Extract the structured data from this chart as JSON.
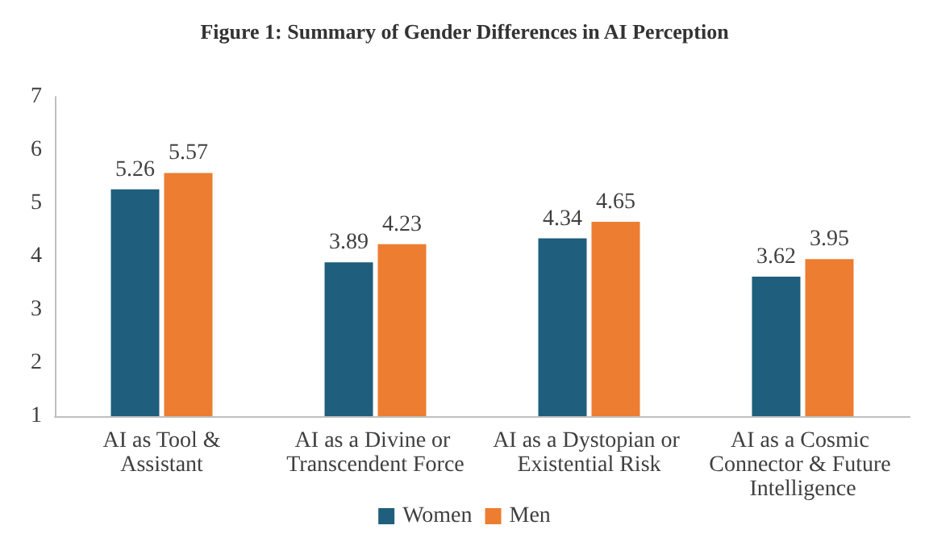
{
  "chart_data": {
    "type": "bar",
    "title": "Figure 1: Summary of Gender Differences in AI Perception",
    "categories": [
      "AI as Tool &Assistant",
      "AI as a Divine or Transcendent Force",
      "AI as a Dystopian or Existential Risk",
      "AI as a Cosmic Connector & Future Intelligence"
    ],
    "series": [
      {
        "name": "Women",
        "color": "#1f5e7c",
        "values": [
          5.26,
          3.89,
          4.34,
          3.62
        ]
      },
      {
        "name": "Men",
        "color": "#ed7d31",
        "values": [
          5.57,
          4.23,
          4.65,
          3.95
        ]
      }
    ],
    "ylim": [
      1,
      7
    ],
    "yticks": [
      1,
      2,
      3,
      4,
      5,
      6,
      7
    ],
    "grid": false,
    "legend": "bottom",
    "data_labels": true
  }
}
